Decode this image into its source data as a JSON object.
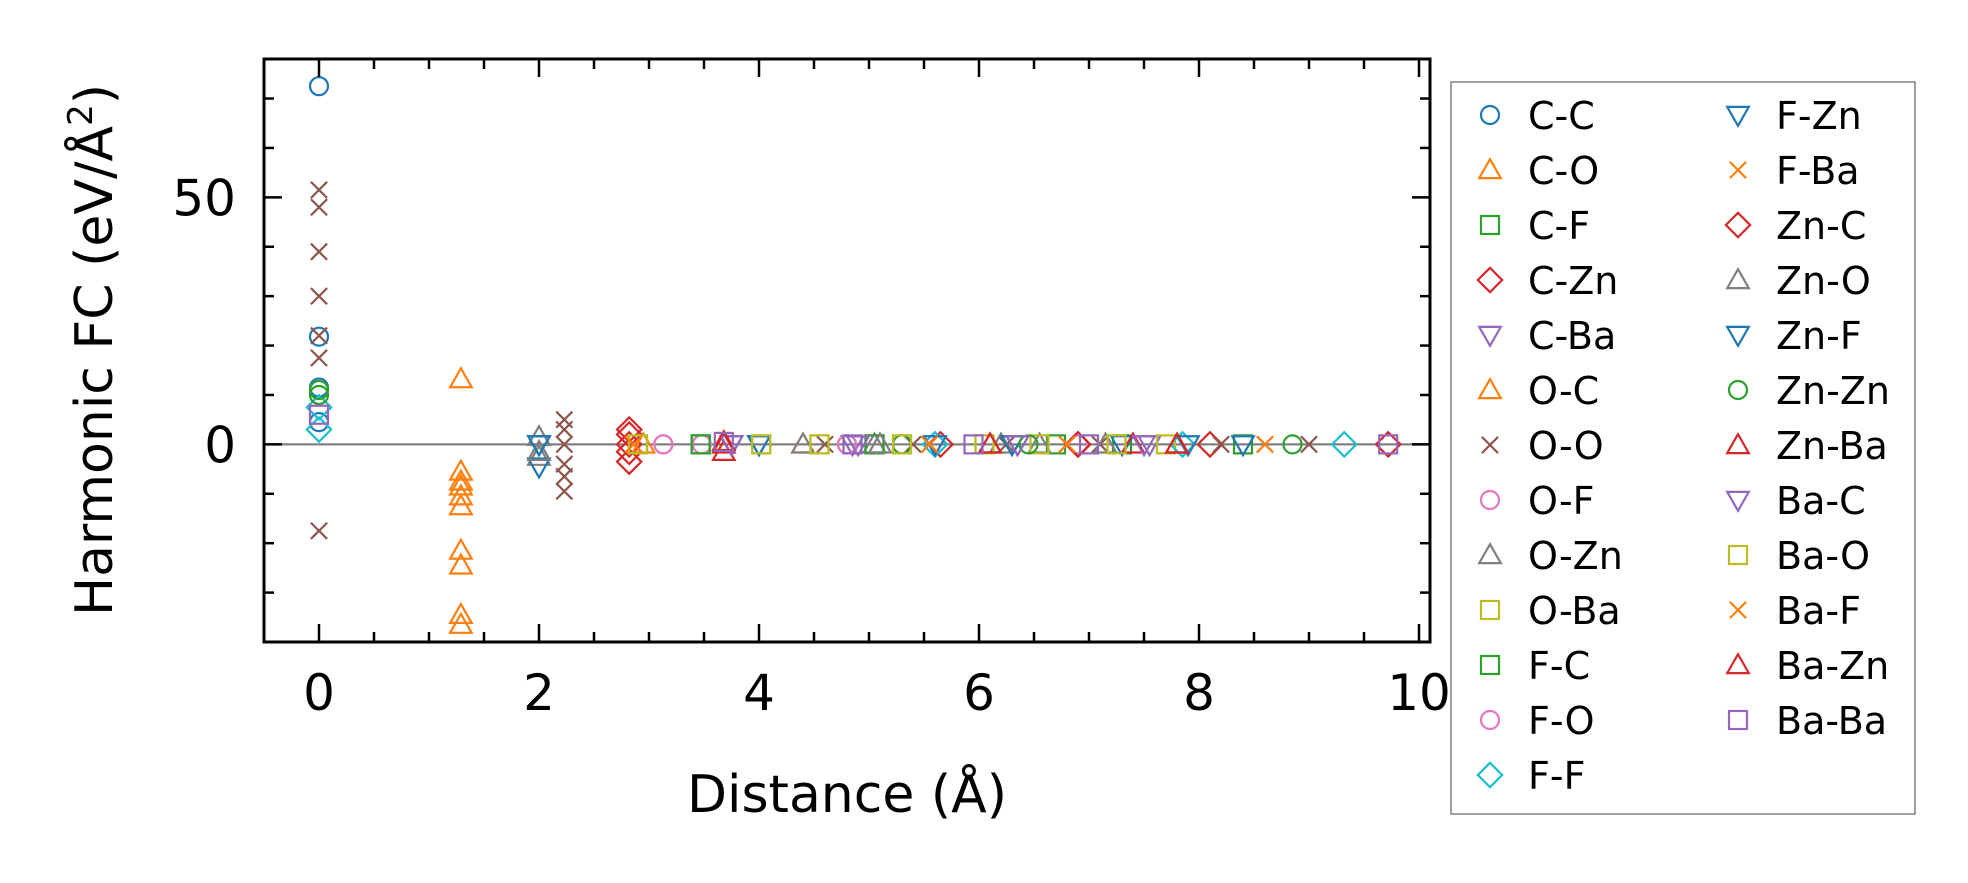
{
  "chart_data": {
    "type": "scatter",
    "title": "",
    "xlabel": "Distance (Å)",
    "ylabel_main": "Harmonic FC (eV/Å",
    "ylabel_sup": "2",
    "ylabel_end": ")",
    "xlim": [
      -0.5,
      10.1
    ],
    "ylim": [
      -40,
      78
    ],
    "xticks": [
      0,
      2,
      4,
      6,
      8,
      10
    ],
    "xtick_labels": [
      "0",
      "2",
      "4",
      "6",
      "8",
      "10"
    ],
    "yticks": [
      0,
      50
    ],
    "ytick_labels": [
      "0",
      "50"
    ],
    "x_minor_step": 0.5,
    "y_minor_step": 10,
    "zero_line": true,
    "legend_location": "outside-right",
    "series": [
      {
        "name": "C-C",
        "marker": "circle",
        "color": "#1f77b4",
        "points": [
          [
            0,
            72.5
          ],
          [
            0,
            21.8
          ],
          [
            0,
            11.5
          ],
          [
            0,
            4.5
          ]
        ]
      },
      {
        "name": "C-O",
        "marker": "triangle-up",
        "color": "#ff7f0e",
        "points": [
          [
            1.29,
            13.2
          ],
          [
            1.29,
            -5.5
          ],
          [
            1.29,
            -8.5
          ],
          [
            1.29,
            -12.5
          ],
          [
            1.29,
            -21.5
          ],
          [
            1.29,
            -24.5
          ],
          [
            1.29,
            -34.5
          ],
          [
            1.29,
            -36.5
          ]
        ]
      },
      {
        "name": "C-F",
        "marker": "square",
        "color": "#2ca02c",
        "points": [
          [
            3.47,
            0
          ],
          [
            5.05,
            0
          ],
          [
            6.7,
            0
          ],
          [
            8.4,
            0
          ]
        ]
      },
      {
        "name": "C-Zn",
        "marker": "diamond",
        "color": "#d62728",
        "points": [
          [
            2.82,
            3.0
          ],
          [
            2.82,
            0
          ],
          [
            2.82,
            -3.5
          ],
          [
            5.65,
            0
          ],
          [
            6.9,
            0
          ],
          [
            8.1,
            0
          ]
        ]
      },
      {
        "name": "C-Ba",
        "marker": "triangle-down",
        "color": "#9467bd",
        "points": [
          [
            3.75,
            0
          ],
          [
            4.85,
            0
          ],
          [
            6.35,
            0
          ],
          [
            7.55,
            0
          ]
        ]
      },
      {
        "name": "O-C",
        "marker": "triangle-up",
        "color": "#ff7f0e",
        "points": [
          [
            1.29,
            -7.5
          ],
          [
            1.29,
            -10.5
          ],
          [
            2.95,
            0
          ],
          [
            4.4,
            0
          ]
        ]
      },
      {
        "name": "O-O",
        "marker": "x",
        "color": "#8c564b",
        "points": [
          [
            0,
            51.5
          ],
          [
            0,
            48
          ],
          [
            0,
            39
          ],
          [
            0,
            30
          ],
          [
            0,
            22
          ],
          [
            0,
            17.5
          ],
          [
            0,
            -17.5
          ],
          [
            2.23,
            5
          ],
          [
            2.23,
            3
          ],
          [
            2.23,
            0
          ],
          [
            2.23,
            -4
          ],
          [
            2.23,
            -6.5
          ],
          [
            2.23,
            -9.5
          ],
          [
            4.6,
            0
          ],
          [
            5.4,
            0
          ],
          [
            6.25,
            0
          ],
          [
            7.1,
            0
          ],
          [
            8.2,
            0
          ],
          [
            9.0,
            0
          ]
        ]
      },
      {
        "name": "O-F",
        "marker": "circle",
        "color": "#e377c2",
        "points": [
          [
            3.13,
            0
          ],
          [
            3.48,
            0
          ],
          [
            4.8,
            0
          ]
        ]
      },
      {
        "name": "O-Zn",
        "marker": "triangle-up",
        "color": "#7f7f7f",
        "points": [
          [
            2.0,
            1.5
          ],
          [
            2.0,
            -2.5
          ],
          [
            4.4,
            0
          ],
          [
            5.05,
            0
          ],
          [
            6.55,
            0
          ]
        ]
      },
      {
        "name": "O-Ba",
        "marker": "square",
        "color": "#bcbd22",
        "points": [
          [
            2.9,
            0
          ],
          [
            4.02,
            0
          ],
          [
            4.55,
            0
          ],
          [
            5.3,
            0
          ],
          [
            6.05,
            0
          ],
          [
            6.55,
            0
          ],
          [
            7.25,
            0
          ],
          [
            7.7,
            0
          ]
        ]
      },
      {
        "name": "F-C",
        "marker": "square",
        "color": "#2ca02c",
        "points": [
          [
            3.47,
            0
          ],
          [
            5.05,
            0
          ],
          [
            7.3,
            0
          ]
        ]
      },
      {
        "name": "F-O",
        "marker": "circle",
        "color": "#e377c2",
        "points": [
          [
            3.13,
            0
          ],
          [
            4.8,
            0
          ],
          [
            6.9,
            0
          ]
        ]
      },
      {
        "name": "F-F",
        "marker": "diamond",
        "color": "#17becf",
        "points": [
          [
            0,
            7.5
          ],
          [
            0,
            3.0
          ],
          [
            5.6,
            0
          ],
          [
            7.85,
            0
          ],
          [
            9.32,
            0
          ]
        ]
      },
      {
        "name": "F-Zn",
        "marker": "triangle-down",
        "color": "#1f77b4",
        "points": [
          [
            2.0,
            0
          ],
          [
            2.0,
            -4.5
          ],
          [
            4.0,
            0
          ],
          [
            5.6,
            0
          ],
          [
            7.3,
            0
          ],
          [
            8.4,
            0
          ]
        ]
      },
      {
        "name": "F-Ba",
        "marker": "x",
        "color": "#ff7f0e",
        "points": [
          [
            2.86,
            0
          ],
          [
            5.55,
            0
          ],
          [
            6.8,
            0
          ],
          [
            8.6,
            0
          ]
        ]
      },
      {
        "name": "Zn-C",
        "marker": "diamond",
        "color": "#d62728",
        "points": [
          [
            2.82,
            2.0
          ],
          [
            2.82,
            -1.5
          ],
          [
            6.9,
            0
          ],
          [
            9.72,
            0
          ]
        ]
      },
      {
        "name": "Zn-O",
        "marker": "triangle-up",
        "color": "#7f7f7f",
        "points": [
          [
            2.0,
            -1.5
          ],
          [
            5.1,
            0
          ],
          [
            6.2,
            0
          ],
          [
            7.15,
            0
          ]
        ]
      },
      {
        "name": "Zn-F",
        "marker": "triangle-down",
        "color": "#1f77b4",
        "points": [
          [
            2.0,
            0
          ],
          [
            4.0,
            0
          ],
          [
            6.3,
            0
          ],
          [
            7.9,
            0
          ]
        ]
      },
      {
        "name": "Zn-Zn",
        "marker": "circle",
        "color": "#2ca02c",
        "points": [
          [
            0,
            11.0
          ],
          [
            0,
            10.0
          ],
          [
            5.3,
            0
          ],
          [
            6.45,
            0
          ],
          [
            8.85,
            0
          ]
        ]
      },
      {
        "name": "Zn-Ba",
        "marker": "triangle-up",
        "color": "#d62728",
        "points": [
          [
            3.68,
            0
          ],
          [
            3.68,
            -1.5
          ],
          [
            6.1,
            0
          ],
          [
            7.4,
            0
          ],
          [
            7.8,
            0
          ]
        ]
      },
      {
        "name": "Ba-C",
        "marker": "triangle-down",
        "color": "#9467bd",
        "points": [
          [
            3.75,
            0
          ],
          [
            4.9,
            0
          ],
          [
            6.35,
            0
          ],
          [
            7.5,
            0
          ]
        ]
      },
      {
        "name": "Ba-O",
        "marker": "square",
        "color": "#bcbd22",
        "points": [
          [
            2.9,
            0
          ],
          [
            4.02,
            0
          ],
          [
            4.55,
            0
          ],
          [
            5.3,
            0
          ],
          [
            6.05,
            0
          ],
          [
            7.25,
            0
          ]
        ]
      },
      {
        "name": "Ba-F",
        "marker": "x",
        "color": "#ff7f0e",
        "points": [
          [
            2.86,
            0
          ],
          [
            5.55,
            0
          ],
          [
            6.8,
            0
          ],
          [
            8.6,
            0
          ]
        ]
      },
      {
        "name": "Ba-Zn",
        "marker": "triangle-up",
        "color": "#d62728",
        "points": [
          [
            3.68,
            0.5
          ],
          [
            6.1,
            0
          ],
          [
            7.8,
            0
          ]
        ]
      },
      {
        "name": "Ba-Ba",
        "marker": "square",
        "color": "#9467bd",
        "points": [
          [
            0,
            6.0
          ],
          [
            3.68,
            0.5
          ],
          [
            4.85,
            0
          ],
          [
            5.95,
            0
          ],
          [
            7.0,
            0
          ],
          [
            9.72,
            0
          ]
        ]
      }
    ]
  }
}
